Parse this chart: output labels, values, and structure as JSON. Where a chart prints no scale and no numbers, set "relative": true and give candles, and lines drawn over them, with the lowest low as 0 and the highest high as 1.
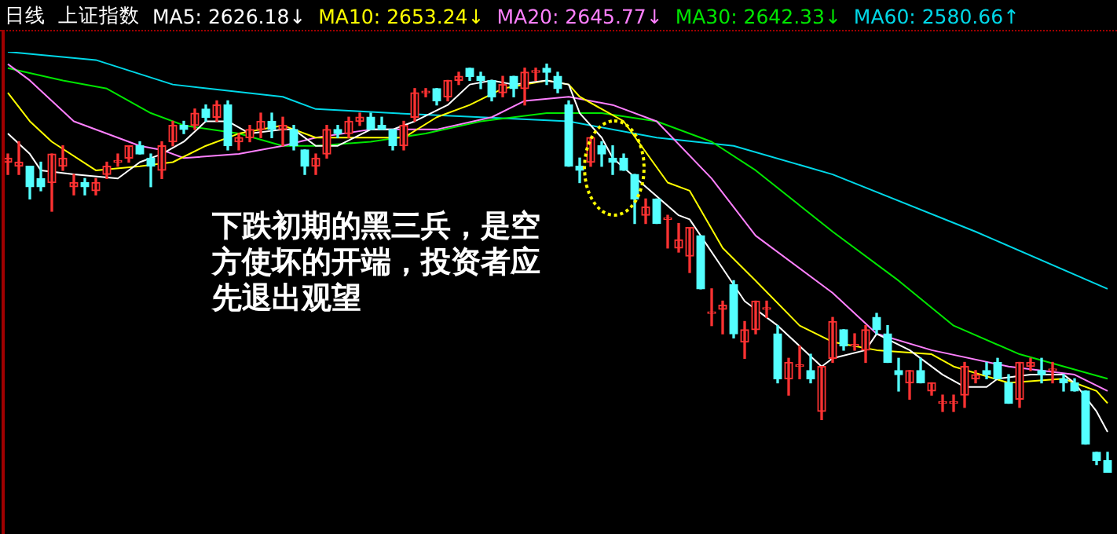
{
  "chart_data": {
    "type": "candlestick",
    "title": "日线",
    "subtitle": "上证指数",
    "relative": true,
    "legend": "top left",
    "categories": [
      null,
      null,
      null,
      null,
      null,
      null,
      null,
      null,
      null,
      null,
      null,
      null,
      null,
      null,
      null,
      null,
      null,
      null,
      null,
      null,
      null,
      null,
      null,
      null,
      null,
      null,
      null,
      null,
      null,
      null,
      null,
      null,
      null,
      null,
      null,
      null,
      null,
      null,
      null,
      null,
      null,
      null,
      null,
      null,
      null,
      null,
      null,
      null,
      null,
      null,
      null,
      null,
      null,
      null,
      null,
      null,
      null,
      null,
      null,
      null,
      null,
      null,
      null,
      null,
      null,
      null,
      null,
      null,
      null,
      null,
      null,
      null,
      null,
      null,
      null,
      null,
      null,
      null,
      null,
      null,
      null,
      null,
      null,
      null,
      null,
      null,
      null,
      null,
      null,
      null,
      null,
      null,
      null,
      null,
      null,
      null,
      null,
      null,
      null,
      null,
      null
    ],
    "ohlc": [
      [
        0.76,
        0.78,
        0.73,
        0.77
      ],
      [
        0.75,
        0.81,
        0.73,
        0.76
      ],
      [
        0.75,
        0.75,
        0.67,
        0.7
      ],
      [
        0.72,
        0.76,
        0.69,
        0.7
      ],
      [
        0.71,
        0.78,
        0.64,
        0.78
      ],
      [
        0.75,
        0.8,
        0.74,
        0.77
      ],
      [
        0.7,
        0.73,
        0.68,
        0.71
      ],
      [
        0.71,
        0.72,
        0.68,
        0.7
      ],
      [
        0.69,
        0.72,
        0.68,
        0.71
      ],
      [
        0.73,
        0.76,
        0.72,
        0.75
      ],
      [
        0.76,
        0.78,
        0.75,
        0.76
      ],
      [
        0.77,
        0.8,
        0.76,
        0.8
      ],
      [
        0.8,
        0.81,
        0.78,
        0.78
      ],
      [
        0.77,
        0.78,
        0.7,
        0.75
      ],
      [
        0.74,
        0.81,
        0.72,
        0.8
      ],
      [
        0.81,
        0.86,
        0.8,
        0.85
      ],
      [
        0.85,
        0.86,
        0.83,
        0.84
      ],
      [
        0.85,
        0.89,
        0.84,
        0.88
      ],
      [
        0.89,
        0.9,
        0.86,
        0.87
      ],
      [
        0.87,
        0.91,
        0.86,
        0.9
      ],
      [
        0.9,
        0.91,
        0.79,
        0.8
      ],
      [
        0.81,
        0.83,
        0.79,
        0.82
      ],
      [
        0.82,
        0.85,
        0.81,
        0.84
      ],
      [
        0.84,
        0.88,
        0.82,
        0.86
      ],
      [
        0.86,
        0.88,
        0.82,
        0.84
      ],
      [
        0.84,
        0.87,
        0.8,
        0.85
      ],
      [
        0.84,
        0.85,
        0.79,
        0.8
      ],
      [
        0.79,
        0.79,
        0.73,
        0.75
      ],
      [
        0.75,
        0.78,
        0.73,
        0.77
      ],
      [
        0.78,
        0.85,
        0.77,
        0.84
      ],
      [
        0.84,
        0.85,
        0.82,
        0.83
      ],
      [
        0.83,
        0.87,
        0.82,
        0.86
      ],
      [
        0.86,
        0.88,
        0.85,
        0.87
      ],
      [
        0.87,
        0.88,
        0.84,
        0.84
      ],
      [
        0.85,
        0.87,
        0.84,
        0.84
      ],
      [
        0.84,
        0.84,
        0.79,
        0.8
      ],
      [
        0.8,
        0.86,
        0.79,
        0.85
      ],
      [
        0.87,
        0.94,
        0.86,
        0.93
      ],
      [
        0.93,
        0.94,
        0.92,
        0.93
      ],
      [
        0.94,
        0.94,
        0.9,
        0.91
      ],
      [
        0.92,
        0.96,
        0.91,
        0.96
      ],
      [
        0.96,
        0.98,
        0.95,
        0.97
      ],
      [
        0.99,
        0.99,
        0.96,
        0.97
      ],
      [
        0.97,
        0.98,
        0.94,
        0.96
      ],
      [
        0.96,
        0.96,
        0.91,
        0.92
      ],
      [
        0.93,
        0.97,
        0.92,
        0.95
      ],
      [
        0.97,
        0.97,
        0.92,
        0.94
      ],
      [
        0.94,
        0.99,
        0.9,
        0.98
      ],
      [
        0.98,
        0.99,
        0.96,
        0.98
      ],
      [
        0.99,
        1,
        0.95,
        0.98
      ],
      [
        0.97,
        0.98,
        0.93,
        0.94
      ],
      [
        0.9,
        0.91,
        0.75,
        0.75
      ],
      [
        0.75,
        0.77,
        0.71,
        0.74
      ],
      [
        0.76,
        0.82,
        0.75,
        0.82
      ],
      [
        0.8,
        0.81,
        0.75,
        0.78
      ],
      [
        0.77,
        0.8,
        0.73,
        0.76
      ],
      [
        0.77,
        0.78,
        0.74,
        0.74
      ],
      [
        0.73,
        0.73,
        0.61,
        0.67
      ],
      [
        0.63,
        0.67,
        0.61,
        0.65
      ],
      [
        0.67,
        0.67,
        0.61,
        0.61
      ],
      [
        0.62,
        0.63,
        0.55,
        0.62
      ],
      [
        0.55,
        0.61,
        0.54,
        0.57
      ],
      [
        0.53,
        0.6,
        0.49,
        0.6
      ],
      [
        0.58,
        0.58,
        0.45,
        0.45
      ],
      [
        0.39,
        0.45,
        0.36,
        0.39
      ],
      [
        0.4,
        0.42,
        0.34,
        0.41
      ],
      [
        0.46,
        0.47,
        0.33,
        0.34
      ],
      [
        0.32,
        0.37,
        0.28,
        0.35
      ],
      [
        0.35,
        0.42,
        0.34,
        0.42
      ],
      [
        0.4,
        0.42,
        0.38,
        0.4
      ],
      [
        0.34,
        0.36,
        0.22,
        0.23
      ],
      [
        0.23,
        0.28,
        0.19,
        0.27
      ],
      [
        0.26,
        0.31,
        0.23,
        0.26
      ],
      [
        0.25,
        0.29,
        0.22,
        0.23
      ],
      [
        0.15,
        0.26,
        0.13,
        0.26
      ],
      [
        0.28,
        0.38,
        0.27,
        0.37
      ],
      [
        0.35,
        0.35,
        0.3,
        0.31
      ],
      [
        0.31,
        0.34,
        0.3,
        0.31
      ],
      [
        0.3,
        0.36,
        0.27,
        0.35
      ],
      [
        0.38,
        0.39,
        0.34,
        0.35
      ],
      [
        0.34,
        0.36,
        0.27,
        0.27
      ],
      [
        0.25,
        0.28,
        0.2,
        0.24
      ],
      [
        0.22,
        0.25,
        0.18,
        0.25
      ],
      [
        0.25,
        0.28,
        0.22,
        0.22
      ],
      [
        0.2,
        0.22,
        0.19,
        0.22
      ],
      [
        0.17,
        0.19,
        0.15,
        0.17
      ],
      [
        0.17,
        0.19,
        0.15,
        0.17
      ],
      [
        0.19,
        0.27,
        0.16,
        0.26
      ],
      [
        0.23,
        0.25,
        0.22,
        0.24
      ],
      [
        0.25,
        0.27,
        0.23,
        0.24
      ],
      [
        0.27,
        0.28,
        0.23,
        0.23
      ],
      [
        0.22,
        0.24,
        0.17,
        0.17
      ],
      [
        0.18,
        0.27,
        0.16,
        0.27
      ],
      [
        0.26,
        0.28,
        0.25,
        0.27
      ],
      [
        0.25,
        0.28,
        0.22,
        0.24
      ],
      [
        0.25,
        0.27,
        0.22,
        0.25
      ],
      [
        0.23,
        0.24,
        0.2,
        0.22
      ],
      [
        0.22,
        0.23,
        0.2,
        0.2
      ],
      [
        0.2,
        0.2,
        0.07,
        0.07
      ],
      [
        0.05,
        0.05,
        0.02,
        0.03
      ],
      [
        0.03,
        0.05,
        0,
        0
      ]
    ],
    "colors": [
      "#ff3232",
      "#ff3232",
      "#54ffff",
      "#54ffff",
      "#ff3232",
      "#ff3232",
      "#ff3232",
      "#54ffff",
      "#ff3232",
      "#ff3232",
      "#ff3232",
      "#ff3232",
      "#54ffff",
      "#54ffff",
      "#ff3232",
      "#ff3232",
      "#54ffff",
      "#ff3232",
      "#54ffff",
      "#ff3232",
      "#54ffff",
      "#ff3232",
      "#ff3232",
      "#ff3232",
      "#54ffff",
      "#ff3232",
      "#54ffff",
      "#54ffff",
      "#ff3232",
      "#ff3232",
      "#54ffff",
      "#ff3232",
      "#ff3232",
      "#54ffff",
      "#54ffff",
      "#54ffff",
      "#ff3232",
      "#ff3232",
      "#ff3232",
      "#54ffff",
      "#ff3232",
      "#ff3232",
      "#54ffff",
      "#54ffff",
      "#54ffff",
      "#ff3232",
      "#54ffff",
      "#ff3232",
      "#ff3232",
      "#54ffff",
      "#54ffff",
      "#54ffff",
      "#54ffff",
      "#ff3232",
      "#54ffff",
      "#54ffff",
      "#54ffff",
      "#54ffff",
      "#ff3232",
      "#54ffff",
      "#ff3232",
      "#ff3232",
      "#ff3232",
      "#54ffff",
      "#ff3232",
      "#ff3232",
      "#54ffff",
      "#ff3232",
      "#ff3232",
      "#ff3232",
      "#54ffff",
      "#ff3232",
      "#ff3232",
      "#54ffff",
      "#ff3232",
      "#ff3232",
      "#54ffff",
      "#ff3232",
      "#ff3232",
      "#54ffff",
      "#54ffff",
      "#54ffff",
      "#ff3232",
      "#54ffff",
      "#ff3232",
      "#ff3232",
      "#ff3232",
      "#ff3232",
      "#ff3232",
      "#54ffff",
      "#54ffff",
      "#54ffff",
      "#ff3232",
      "#ff3232",
      "#54ffff",
      "#ff3232",
      "#54ffff",
      "#54ffff",
      "#54ffff",
      "#54ffff",
      "#54ffff"
    ],
    "series": [
      {
        "name": "MA5: 2626.18↓",
        "type": "line",
        "color": "#ffffff",
        "values": [
          0.83,
          null,
          0.78,
          0.74,
          null,
          null,
          0.73,
          null,
          null,
          null,
          0.72,
          null,
          0.76,
          null,
          0.78,
          null,
          0.81,
          null,
          0.86,
          null,
          0.86,
          null,
          0.83,
          null,
          null,
          0.84,
          0.84,
          null,
          0.8,
          null,
          0.8,
          null,
          null,
          0.84,
          null,
          0.84,
          null,
          0.86,
          null,
          null,
          0.9,
          null,
          0.95,
          null,
          0.96,
          null,
          0.95,
          null,
          null,
          0.96,
          null,
          0.95,
          0.88,
          null,
          0.82,
          0.77,
          null,
          null,
          0.7,
          null,
          null,
          0.63,
          0.62,
          null,
          null,
          0.5,
          null,
          0.42,
          null,
          null,
          0.36,
          null,
          0.31,
          null,
          0.26,
          0.28,
          null,
          null,
          0.3,
          0.34,
          null,
          null,
          0.3,
          null,
          null,
          0.24,
          null,
          0.21,
          null,
          0.21,
          0.23,
          null,
          null,
          0.24,
          null,
          null,
          0.24,
          0.22,
          null,
          0.15,
          0.1
        ]
      },
      {
        "name": "MA10: 2653.24↓",
        "type": "line",
        "color": "#ffff00",
        "values": [
          0.93,
          null,
          0.86,
          null,
          0.81,
          null,
          null,
          null,
          0.74,
          null,
          null,
          null,
          0.75,
          null,
          null,
          0.76,
          null,
          null,
          0.8,
          null,
          null,
          0.83,
          null,
          null,
          null,
          0.85,
          null,
          null,
          0.82,
          null,
          null,
          null,
          null,
          0.82,
          null,
          null,
          0.82,
          null,
          null,
          0.87,
          null,
          null,
          0.9,
          null,
          null,
          0.94,
          null,
          null,
          null,
          0.96,
          null,
          0.95,
          0.92,
          null,
          null,
          null,
          0.86,
          null,
          null,
          null,
          0.71,
          null,
          0.69,
          null,
          null,
          0.55,
          null,
          null,
          0.47,
          null,
          null,
          null,
          0.36,
          null,
          null,
          0.32,
          null,
          null,
          null,
          0.3,
          null,
          null,
          null,
          null,
          0.29,
          null,
          0.26,
          null,
          null,
          null,
          null,
          0.22,
          null,
          null,
          null,
          null,
          0.23,
          null,
          null,
          0.2,
          0.17
        ]
      },
      {
        "name": "MA20: 2645.77↓",
        "type": "line",
        "color": "#ff80ff",
        "values": [
          1.0,
          null,
          0.96,
          null,
          null,
          null,
          0.86,
          null,
          null,
          null,
          null,
          null,
          0.8,
          null,
          0.79,
          null,
          0.77,
          null,
          null,
          null,
          null,
          0.78,
          null,
          null,
          null,
          0.8,
          null,
          null,
          0.82,
          null,
          null,
          null,
          null,
          0.84,
          null,
          null,
          null,
          null,
          null,
          0.84,
          null,
          null,
          null,
          null,
          0.87,
          null,
          null,
          0.91,
          null,
          null,
          null,
          0.92,
          null,
          null,
          null,
          0.9,
          null,
          null,
          null,
          0.86,
          null,
          null,
          null,
          null,
          0.72,
          null,
          null,
          null,
          0.58,
          null,
          null,
          null,
          null,
          null,
          null,
          0.44,
          null,
          null,
          null,
          0.34,
          null,
          null,
          null,
          null,
          0.3,
          null,
          null,
          null,
          null,
          null,
          null,
          0.26,
          null,
          null,
          null,
          null,
          null,
          0.24,
          null,
          null,
          0.2
        ]
      },
      {
        "name": "MA30: 2642.33↓",
        "type": "line",
        "color": "#00e600",
        "values": [
          0.99,
          null,
          null,
          null,
          null,
          0.96,
          null,
          null,
          null,
          0.94,
          null,
          null,
          null,
          0.88,
          null,
          null,
          0.85,
          null,
          null,
          null,
          null,
          0.83,
          null,
          null,
          null,
          0.8,
          null,
          null,
          0.8,
          null,
          null,
          null,
          null,
          0.81,
          null,
          null,
          null,
          null,
          0.83,
          null,
          null,
          null,
          null,
          0.86,
          null,
          null,
          null,
          null,
          null,
          0.88,
          null,
          null,
          null,
          null,
          0.88,
          null,
          null,
          null,
          null,
          0.86,
          null,
          null,
          null,
          null,
          0.81,
          null,
          null,
          null,
          0.74,
          null,
          null,
          null,
          null,
          null,
          null,
          0.59,
          null,
          null,
          null,
          null,
          null,
          0.47,
          null,
          null,
          null,
          null,
          0.36,
          null,
          null,
          null,
          null,
          null,
          0.29,
          null,
          null,
          null,
          null,
          null,
          null,
          null,
          0.23
        ]
      },
      {
        "name": "MA60: 2580.66↑",
        "type": "line",
        "color": "#00d8e8",
        "values": [
          1.03,
          null,
          null,
          null,
          null,
          null,
          null,
          null,
          1.01,
          null,
          null,
          null,
          null,
          null,
          null,
          0.95,
          null,
          null,
          null,
          null,
          null,
          null,
          null,
          null,
          null,
          0.92,
          null,
          null,
          0.89,
          null,
          null,
          null,
          null,
          null,
          null,
          0.88,
          null,
          null,
          null,
          null,
          null,
          null,
          null,
          0.87,
          null,
          null,
          null,
          null,
          null,
          null,
          null,
          0.86,
          null,
          null,
          null,
          null,
          null,
          null,
          null,
          0.82,
          null,
          null,
          null,
          null,
          null,
          null,
          0.8,
          null,
          null,
          null,
          null,
          null,
          null,
          null,
          null,
          0.73,
          null,
          null,
          null,
          null,
          null,
          null,
          null,
          null,
          null,
          null,
          null,
          null,
          0.59,
          null,
          null,
          null,
          null,
          null,
          null,
          null,
          null,
          null,
          null,
          null,
          0.45
        ]
      }
    ],
    "annotations": [
      "下跌初期的黑三兵，是空方使坏的开端，投资者应先退出观望"
    ]
  }
}
